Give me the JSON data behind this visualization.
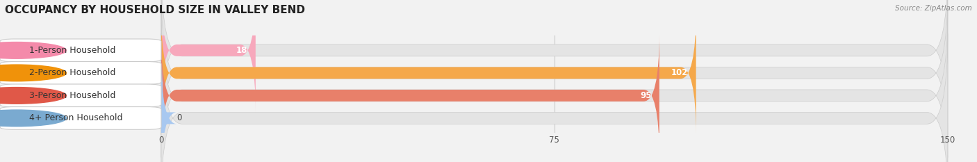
{
  "title": "OCCUPANCY BY HOUSEHOLD SIZE IN VALLEY BEND",
  "source": "Source: ZipAtlas.com",
  "categories": [
    "1-Person Household",
    "2-Person Household",
    "3-Person Household",
    "4+ Person Household"
  ],
  "values": [
    18,
    102,
    95,
    0
  ],
  "bar_colors": [
    "#f7a8bc",
    "#f5a84a",
    "#e8806a",
    "#a8c8f0"
  ],
  "pill_colors": [
    "#f48aaa",
    "#f0920a",
    "#e05848",
    "#7aaad0"
  ],
  "xlim": [
    0,
    150
  ],
  "xticks": [
    0,
    75,
    150
  ],
  "bg_color": "#f2f2f2",
  "bar_bg_color": "#e4e4e4",
  "title_fontsize": 11,
  "label_fontsize": 9,
  "value_fontsize": 8.5,
  "bar_height": 0.52
}
